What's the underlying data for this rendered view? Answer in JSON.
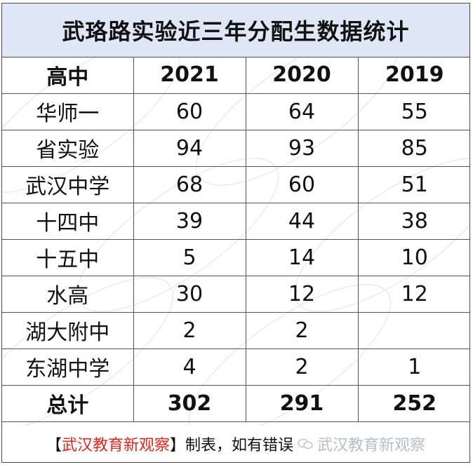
{
  "title": "武珞路实验近三年分配生数据统计",
  "table": {
    "headers": [
      "高中",
      "2021",
      "2020",
      "2019"
    ],
    "rows": [
      {
        "school": "华师一",
        "y2021": "60",
        "y2020": "64",
        "y2019": "55"
      },
      {
        "school": "省实验",
        "y2021": "94",
        "y2020": "93",
        "y2019": "85"
      },
      {
        "school": "武汉中学",
        "y2021": "68",
        "y2020": "60",
        "y2019": "51"
      },
      {
        "school": "十四中",
        "y2021": "39",
        "y2020": "44",
        "y2019": "38"
      },
      {
        "school": "十五中",
        "y2021": "5",
        "y2020": "14",
        "y2019": "10"
      },
      {
        "school": "水高",
        "y2021": "30",
        "y2020": "12",
        "y2019": "12"
      },
      {
        "school": "湖大附中",
        "y2021": "2",
        "y2020": "2",
        "y2019": ""
      },
      {
        "school": "东湖中学",
        "y2021": "4",
        "y2020": "2",
        "y2019": "1"
      }
    ],
    "total": {
      "label": "总计",
      "y2021": "302",
      "y2020": "291",
      "y2019": "252"
    }
  },
  "footer": {
    "bracket_open": "【",
    "brand": "武汉教育新观察",
    "bracket_close": "】",
    "text": "制表，如有错误",
    "watermark": "武汉教育新观察"
  },
  "colors": {
    "title_bg": "#dfe7f6",
    "brand_red": "#e0261c",
    "border": "#555555"
  }
}
